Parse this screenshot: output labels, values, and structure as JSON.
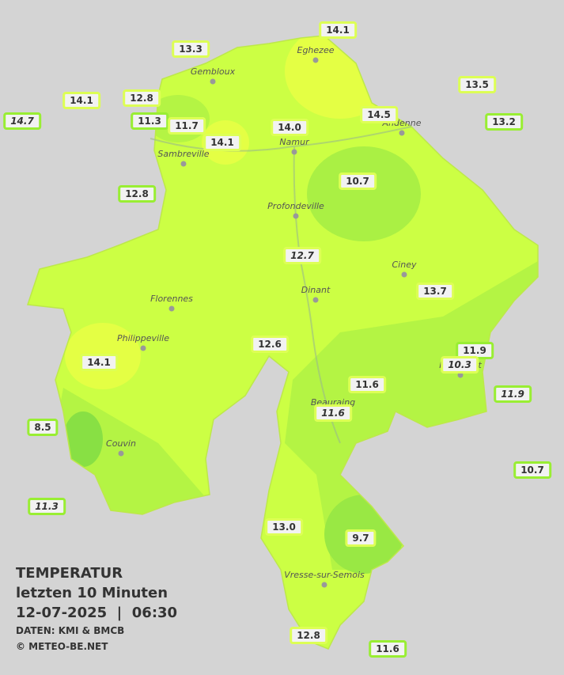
{
  "legend": {
    "title": "TEMPERATUR",
    "period": "letzten 10 Minuten",
    "datetime": "12-07-2025  |  06:30",
    "source": "DATEN: KMI & BMCB",
    "copyright": "© METEO-BE.NET"
  },
  "cities": [
    "Eghezee",
    "Gembloux",
    "Andenne",
    "Namur",
    "Sambreville",
    "Profondeville",
    "Ciney",
    "Dinant",
    "Florennes",
    "Philippeville",
    "Rochefort",
    "Beauraing",
    "Couvin",
    "Vresse-sur-Semois"
  ],
  "stations": [
    "14.1",
    "13.3",
    "13.5",
    "14.1",
    "12.8",
    "14.7",
    "11.3",
    "11.7",
    "14.1",
    "14.0",
    "14.5",
    "13.2",
    "10.7",
    "12.8",
    "12.7",
    "13.7",
    "12.6",
    "11.9",
    "10.3",
    "14.1",
    "11.6",
    "11.9",
    "11.6",
    "8.5",
    "10.7",
    "11.3",
    "13.0",
    "9.7",
    "12.8",
    "11.6"
  ]
}
